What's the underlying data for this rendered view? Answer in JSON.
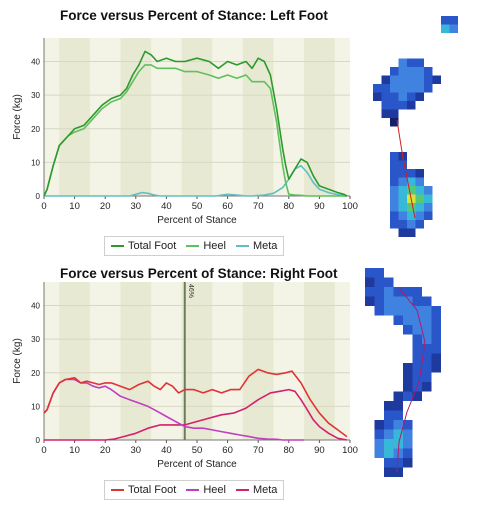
{
  "colors": {
    "total_left": "#2e9a2e",
    "heel_left": "#5fc05f",
    "meta_left": "#5fbfc4",
    "total_right": "#e03333",
    "heel_right": "#bf3fbf",
    "meta_right": "#d4206f",
    "plot_bg": "#f3f3e6",
    "band": "#e8e9d2",
    "marker": "#6b7c5c"
  },
  "chart_data": [
    {
      "type": "line",
      "title": "Force versus Percent of Stance: Left Foot",
      "xlabel": "Percent of Stance",
      "ylabel": "Force (kg)",
      "xlim": [
        0,
        100
      ],
      "ylim": [
        0,
        47
      ],
      "xticks": [
        0,
        10,
        20,
        30,
        40,
        50,
        60,
        70,
        80,
        90,
        100
      ],
      "yticks": [
        0,
        10,
        20,
        30,
        40
      ],
      "grid": true,
      "legend": "bottom",
      "series": [
        {
          "name": "Total Foot",
          "color": "total_left",
          "x": [
            0,
            1,
            3,
            5,
            8,
            10,
            13,
            16,
            19,
            22,
            25,
            27,
            29,
            31,
            33,
            35,
            37,
            40,
            43,
            46,
            50,
            54,
            57,
            60,
            63,
            66,
            68,
            70,
            72,
            74,
            76,
            78,
            79,
            80,
            82,
            84,
            86,
            88,
            90,
            93,
            96,
            98,
            99
          ],
          "y": [
            0,
            2,
            9,
            15,
            18,
            20,
            21,
            24,
            27,
            29,
            30,
            32,
            36,
            39,
            43,
            42,
            40,
            41,
            40,
            40,
            41,
            40,
            38,
            40,
            39,
            40,
            38,
            41,
            40,
            36,
            26,
            14,
            9,
            5,
            8,
            11,
            10,
            6,
            3,
            2,
            1,
            0.5,
            0
          ]
        },
        {
          "name": "Heel",
          "color": "heel_left",
          "x": [
            0,
            1,
            3,
            5,
            8,
            10,
            13,
            16,
            19,
            22,
            25,
            27,
            29,
            31,
            33,
            35,
            37,
            40,
            43,
            46,
            50,
            54,
            57,
            60,
            63,
            66,
            68,
            70,
            72,
            74,
            76,
            78,
            79,
            80,
            82,
            84,
            86,
            88,
            90,
            93,
            96,
            99
          ],
          "y": [
            0,
            2,
            9,
            15,
            18,
            19,
            20,
            23,
            26,
            28,
            29,
            31,
            34,
            37,
            39,
            39,
            38,
            38,
            38,
            37,
            37,
            36,
            35,
            36,
            35,
            36,
            34,
            34,
            34,
            32,
            22,
            9,
            4,
            0.5,
            0.3,
            0.2,
            0,
            0,
            0,
            0,
            0,
            0
          ]
        },
        {
          "name": "Meta",
          "color": "meta_left",
          "x": [
            0,
            28,
            30,
            32,
            34,
            36,
            38,
            56,
            60,
            64,
            66,
            68,
            72,
            75,
            78,
            80,
            82,
            84,
            86,
            88,
            90,
            93,
            96,
            99
          ],
          "y": [
            0,
            0,
            0.5,
            1,
            0.8,
            0.3,
            0,
            0,
            0.5,
            0.2,
            0,
            0,
            0.3,
            0.8,
            2.5,
            5,
            8,
            9,
            7,
            4,
            2,
            1,
            0.4,
            0
          ]
        }
      ]
    },
    {
      "type": "line",
      "title": "Force versus Percent of Stance: Right Foot",
      "xlabel": "Percent of Stance",
      "ylabel": "Force (kg)",
      "xlim": [
        0,
        100
      ],
      "ylim": [
        0,
        47
      ],
      "xticks": [
        0,
        10,
        20,
        30,
        40,
        50,
        60,
        70,
        80,
        90,
        100
      ],
      "yticks": [
        0,
        10,
        20,
        30,
        40
      ],
      "grid": true,
      "legend": "bottom",
      "marker_x": 46,
      "marker_label": "46%",
      "series": [
        {
          "name": "Total Foot",
          "color": "total_right",
          "x": [
            0,
            1,
            3,
            5,
            7,
            10,
            12,
            14,
            16,
            18,
            20,
            22,
            25,
            28,
            31,
            34,
            36,
            38,
            40,
            42,
            44,
            46,
            49,
            52,
            55,
            58,
            61,
            64,
            67,
            70,
            73,
            76,
            79,
            81,
            84,
            87,
            90,
            93,
            96,
            99
          ],
          "y": [
            8,
            9,
            14,
            17,
            18,
            18.5,
            17,
            17.5,
            17,
            16.5,
            17,
            17,
            16,
            15,
            16.5,
            17.5,
            16,
            15,
            17,
            16,
            14,
            15,
            15,
            14,
            15,
            14,
            15,
            15,
            19,
            21,
            20,
            19.5,
            20,
            20.5,
            17,
            12,
            8,
            5,
            3,
            1
          ]
        },
        {
          "name": "Heel",
          "color": "heel_right",
          "x": [
            0,
            1,
            3,
            5,
            7,
            10,
            12,
            14,
            16,
            18,
            20,
            22,
            25,
            28,
            31,
            34,
            36,
            38,
            40,
            42,
            44,
            46,
            49,
            52,
            55,
            58,
            61,
            64,
            67,
            70,
            73,
            76,
            78,
            80,
            82,
            85
          ],
          "y": [
            8,
            9,
            14,
            17,
            18,
            18,
            17,
            17,
            16,
            15.5,
            16,
            15,
            13,
            12,
            11,
            10,
            9,
            8,
            7,
            6,
            5,
            4,
            3.5,
            3.5,
            3,
            2.5,
            2,
            1.5,
            1,
            0.5,
            0.3,
            0.2,
            0,
            0,
            0,
            0
          ]
        },
        {
          "name": "Meta",
          "color": "meta_right",
          "x": [
            0,
            20,
            23,
            26,
            30,
            34,
            38,
            42,
            46,
            50,
            54,
            58,
            62,
            66,
            70,
            74,
            77,
            80,
            82,
            84,
            86,
            88,
            90,
            93,
            96,
            99
          ],
          "y": [
            0,
            0,
            0.3,
            1,
            2,
            3.5,
            4.5,
            4.5,
            4.5,
            5.5,
            6.5,
            7.5,
            8,
            9.5,
            12,
            14,
            14.5,
            15,
            14.5,
            12,
            9,
            6,
            4,
            2,
            0.5,
            0
          ]
        }
      ]
    }
  ],
  "footprints": {
    "left": {
      "cells": [
        [
          8,
          0,
          2
        ],
        [
          9,
          0,
          2
        ],
        [
          8,
          1,
          4
        ],
        [
          9,
          1,
          3
        ],
        [
          3,
          5,
          3
        ],
        [
          4,
          5,
          2
        ],
        [
          5,
          5,
          2
        ],
        [
          2,
          6,
          2
        ],
        [
          3,
          6,
          3
        ],
        [
          4,
          6,
          3
        ],
        [
          5,
          6,
          3
        ],
        [
          6,
          6,
          2
        ],
        [
          1,
          7,
          1
        ],
        [
          2,
          7,
          3
        ],
        [
          3,
          7,
          3
        ],
        [
          4,
          7,
          3
        ],
        [
          5,
          7,
          3
        ],
        [
          6,
          7,
          2
        ],
        [
          7,
          7,
          1
        ],
        [
          0,
          8,
          2
        ],
        [
          1,
          8,
          2
        ],
        [
          2,
          8,
          3
        ],
        [
          3,
          8,
          3
        ],
        [
          4,
          8,
          3
        ],
        [
          5,
          8,
          3
        ],
        [
          6,
          8,
          2
        ],
        [
          0,
          9,
          1
        ],
        [
          1,
          9,
          2
        ],
        [
          2,
          9,
          2
        ],
        [
          3,
          9,
          3
        ],
        [
          4,
          9,
          2
        ],
        [
          5,
          9,
          1
        ],
        [
          1,
          10,
          2
        ],
        [
          2,
          10,
          2
        ],
        [
          3,
          10,
          2
        ],
        [
          4,
          10,
          1
        ],
        [
          1,
          11,
          1
        ],
        [
          2,
          11,
          1
        ],
        [
          2,
          12,
          0
        ],
        [
          2,
          16,
          2
        ],
        [
          3,
          16,
          1
        ],
        [
          2,
          17,
          2
        ],
        [
          3,
          17,
          2
        ],
        [
          2,
          18,
          2
        ],
        [
          3,
          18,
          2
        ],
        [
          4,
          18,
          2
        ],
        [
          5,
          18,
          1
        ],
        [
          2,
          19,
          2
        ],
        [
          3,
          19,
          3
        ],
        [
          4,
          19,
          4
        ],
        [
          5,
          19,
          3
        ],
        [
          2,
          20,
          3
        ],
        [
          3,
          20,
          4
        ],
        [
          4,
          20,
          5
        ],
        [
          5,
          20,
          4
        ],
        [
          6,
          20,
          3
        ],
        [
          2,
          21,
          3
        ],
        [
          3,
          21,
          4
        ],
        [
          4,
          21,
          6
        ],
        [
          5,
          21,
          5
        ],
        [
          6,
          21,
          4
        ],
        [
          2,
          22,
          3
        ],
        [
          3,
          22,
          4
        ],
        [
          4,
          22,
          5
        ],
        [
          5,
          22,
          4
        ],
        [
          6,
          22,
          3
        ],
        [
          2,
          23,
          2
        ],
        [
          3,
          23,
          3
        ],
        [
          4,
          23,
          4
        ],
        [
          5,
          23,
          3
        ],
        [
          6,
          23,
          2
        ],
        [
          2,
          24,
          2
        ],
        [
          3,
          24,
          2
        ],
        [
          4,
          24,
          3
        ],
        [
          5,
          24,
          2
        ],
        [
          3,
          25,
          1
        ],
        [
          4,
          25,
          1
        ]
      ]
    },
    "right": {
      "cells": [
        [
          0,
          0,
          2
        ],
        [
          1,
          0,
          2
        ],
        [
          0,
          1,
          1
        ],
        [
          1,
          1,
          2
        ],
        [
          2,
          1,
          2
        ],
        [
          0,
          2,
          2
        ],
        [
          1,
          2,
          2
        ],
        [
          2,
          2,
          3
        ],
        [
          3,
          2,
          2
        ],
        [
          4,
          2,
          2
        ],
        [
          5,
          2,
          2
        ],
        [
          0,
          3,
          1
        ],
        [
          1,
          3,
          2
        ],
        [
          2,
          3,
          3
        ],
        [
          3,
          3,
          3
        ],
        [
          4,
          3,
          3
        ],
        [
          5,
          3,
          2
        ],
        [
          6,
          3,
          2
        ],
        [
          1,
          4,
          2
        ],
        [
          2,
          4,
          3
        ],
        [
          3,
          4,
          3
        ],
        [
          4,
          4,
          3
        ],
        [
          5,
          4,
          3
        ],
        [
          6,
          4,
          3
        ],
        [
          7,
          4,
          2
        ],
        [
          3,
          5,
          2
        ],
        [
          4,
          5,
          3
        ],
        [
          5,
          5,
          3
        ],
        [
          6,
          5,
          3
        ],
        [
          7,
          5,
          2
        ],
        [
          4,
          6,
          2
        ],
        [
          5,
          6,
          3
        ],
        [
          6,
          6,
          3
        ],
        [
          7,
          6,
          2
        ],
        [
          5,
          7,
          2
        ],
        [
          6,
          7,
          3
        ],
        [
          7,
          7,
          2
        ],
        [
          5,
          8,
          2
        ],
        [
          6,
          8,
          2
        ],
        [
          7,
          8,
          2
        ],
        [
          5,
          9,
          2
        ],
        [
          6,
          9,
          2
        ],
        [
          7,
          9,
          1
        ],
        [
          4,
          10,
          1
        ],
        [
          5,
          10,
          2
        ],
        [
          6,
          10,
          2
        ],
        [
          7,
          10,
          1
        ],
        [
          4,
          11,
          1
        ],
        [
          5,
          11,
          2
        ],
        [
          6,
          11,
          2
        ],
        [
          4,
          12,
          1
        ],
        [
          5,
          12,
          2
        ],
        [
          6,
          12,
          1
        ],
        [
          3,
          13,
          1
        ],
        [
          4,
          13,
          2
        ],
        [
          5,
          13,
          1
        ],
        [
          2,
          14,
          1
        ],
        [
          3,
          14,
          1
        ],
        [
          2,
          15,
          2
        ],
        [
          3,
          15,
          2
        ],
        [
          1,
          16,
          1
        ],
        [
          2,
          16,
          2
        ],
        [
          3,
          16,
          3
        ],
        [
          4,
          16,
          2
        ],
        [
          1,
          17,
          2
        ],
        [
          2,
          17,
          3
        ],
        [
          3,
          17,
          4
        ],
        [
          4,
          17,
          3
        ],
        [
          1,
          18,
          3
        ],
        [
          2,
          18,
          4
        ],
        [
          3,
          18,
          4
        ],
        [
          4,
          18,
          3
        ],
        [
          1,
          19,
          3
        ],
        [
          2,
          19,
          4
        ],
        [
          3,
          19,
          3
        ],
        [
          4,
          19,
          2
        ],
        [
          2,
          20,
          2
        ],
        [
          3,
          20,
          2
        ],
        [
          4,
          20,
          1
        ],
        [
          2,
          21,
          1
        ],
        [
          3,
          21,
          1
        ]
      ]
    }
  }
}
